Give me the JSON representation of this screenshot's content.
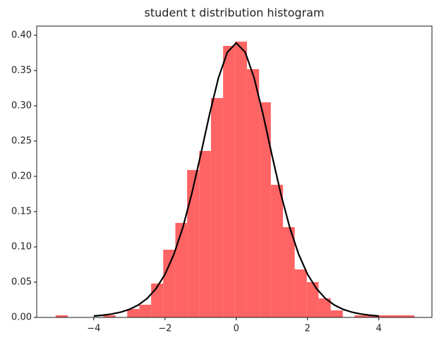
{
  "chart_data": {
    "type": "histogram",
    "title": "student t distribution histogram",
    "bins": [
      -5.07,
      -4.73,
      -4.4,
      -4.06,
      -3.73,
      -3.39,
      -3.06,
      -2.72,
      -2.39,
      -2.05,
      -1.71,
      -1.38,
      -1.04,
      -0.71,
      -0.37,
      -0.04,
      0.3,
      0.64,
      0.97,
      1.31,
      1.64,
      1.98,
      2.31,
      2.65,
      2.99,
      3.32,
      3.66,
      3.99,
      4.33,
      4.66,
      5.0
    ],
    "values": [
      0.003,
      0,
      0,
      0,
      0.003,
      0,
      0.012,
      0.018,
      0.048,
      0.096,
      0.134,
      0.209,
      0.236,
      0.311,
      0.385,
      0.391,
      0.352,
      0.305,
      0.188,
      0.128,
      0.068,
      0.05,
      0.027,
      0.01,
      0,
      0.003,
      0.003,
      0.003,
      0.003,
      0.003
    ],
    "color": "#ff6464",
    "line": {
      "color": "#000000",
      "x": [
        -4,
        -3.75,
        -3.5,
        -3.25,
        -3,
        -2.75,
        -2.5,
        -2.25,
        -2,
        -1.75,
        -1.5,
        -1.25,
        -1,
        -0.75,
        -0.5,
        -0.25,
        0,
        0.25,
        0.5,
        0.75,
        1,
        1.25,
        1.5,
        1.75,
        2,
        2.25,
        2.5,
        2.75,
        3,
        3.25,
        3.5,
        3.75,
        4
      ],
      "y": [
        0.00203,
        0.00311,
        0.00478,
        0.00738,
        0.0114,
        0.0176,
        0.0269,
        0.0409,
        0.0611,
        0.0895,
        0.1275,
        0.1751,
        0.2304,
        0.288,
        0.3397,
        0.376,
        0.3891,
        0.376,
        0.3397,
        0.288,
        0.2304,
        0.1751,
        0.1275,
        0.0895,
        0.0611,
        0.0409,
        0.0269,
        0.0176,
        0.0114,
        0.00738,
        0.00478,
        0.00311,
        0.00203
      ]
    },
    "xlim": [
      -5.6,
      5.49
    ],
    "ylim": [
      0,
      0.413
    ],
    "xticks": [
      {
        "value": -4,
        "label": "−4"
      },
      {
        "value": -2,
        "label": "−2"
      },
      0,
      2,
      4
    ],
    "yticks": [
      {
        "value": 0,
        "label": "0.00"
      },
      {
        "value": 0.05,
        "label": "0.05"
      },
      {
        "value": 0.1,
        "label": "0.10"
      },
      {
        "value": 0.15,
        "label": "0.15"
      },
      {
        "value": 0.2,
        "label": "0.20"
      },
      {
        "value": 0.25,
        "label": "0.25"
      },
      {
        "value": 0.3,
        "label": "0.30"
      },
      {
        "value": 0.35,
        "label": "0.35"
      },
      {
        "value": 0.4,
        "label": "0.40"
      }
    ]
  }
}
